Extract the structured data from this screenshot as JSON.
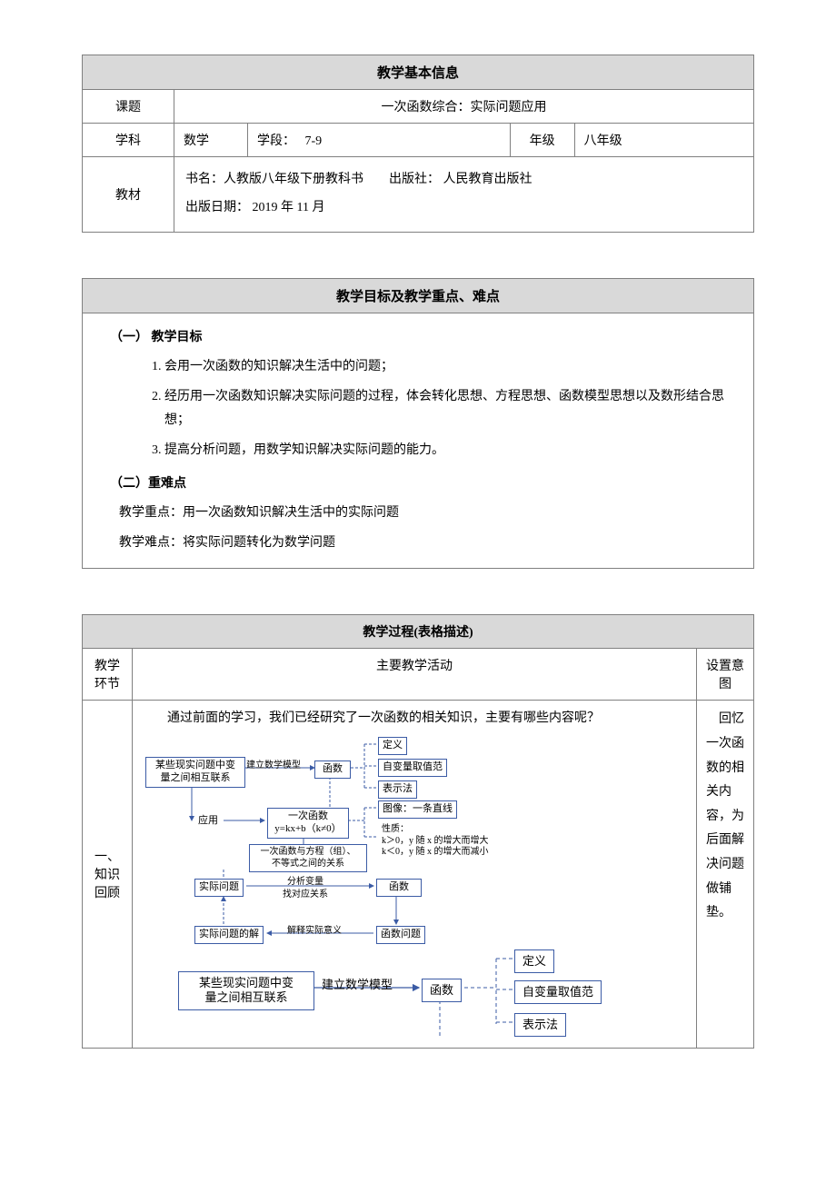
{
  "colors": {
    "border": "#808080",
    "headerBg": "#d9d9d9",
    "boxBorder": "#3b5ba5",
    "arrow": "#3b5ba5",
    "text": "#000000"
  },
  "basicInfo": {
    "header": "教学基本信息",
    "topicLabel": "课题",
    "topicValue": "一次函数综合：实际问题应用",
    "subjectLabel": "学科",
    "subjectValue": "数学",
    "stageLabel": "学段：",
    "stageValue": "7-9",
    "gradeLabel": "年级",
    "gradeValue": "八年级",
    "textbookLabel": "教材",
    "bookName": "书名：人教版八年级下册教科书",
    "publisher": "出版社： 人民教育出版社",
    "pubDate": "出版日期： 2019 年 11 月"
  },
  "goals": {
    "header": "教学目标及教学重点、难点",
    "sec1": "（一） 教学目标",
    "items": [
      "会用一次函数的知识解决生活中的问题；",
      "经历用一次函数知识解决实际问题的过程，体会转化思想、方程思想、函数模型思想以及数形结合思想；",
      "提高分析问题，用数学知识解决实际问题的能力。"
    ],
    "sec2": "（二）重难点",
    "keyPoint": "教学重点：用一次函数知识解决生活中的实际问题",
    "difficulty": "教学难点：将实际问题转化为数学问题"
  },
  "process": {
    "header": "教学过程(表格描述)",
    "col1": "教学环节",
    "col2": "主要教学活动",
    "col3": "设置意图",
    "stage1Label": "一、知识回顾",
    "stage1Intro": "通过前面的学习，我们已经研究了一次函数的相关知识，主要有哪些内容呢？",
    "stage1Intent": "回忆一次函数的相关内容，为后面解决问题做铺垫。"
  },
  "miniFlow": {
    "n1": "某些现实问题中变\n量之间相互联系",
    "e1": "建立数学模型",
    "n2": "函数",
    "n3": "定义",
    "n4": "自变量取值范",
    "n5": "表示法",
    "e2": "应用",
    "n6": "一次函数\ny=kx+b（k≠0）",
    "n7": "图像：一条直线",
    "n8": "性质：\nk＞0，y 随 x 的增大而增大\nk＜0，y 随 x 的增大而减小",
    "n9": "一次函数与方程（组）、\n不等式之间的关系",
    "n10": "实际问题",
    "e3a": "分析变量",
    "e3b": "找对应关系",
    "n11": "函数",
    "n12": "实际问题的解",
    "e4": "解释实际意义",
    "n13": "函数问题"
  },
  "bigFlow": {
    "b1": "某些现实问题中变\n量之间相互联系",
    "be1": "建立数学模型",
    "b2": "函数",
    "b3": "定义",
    "b4": "自变量取值范",
    "b5": "表示法"
  }
}
